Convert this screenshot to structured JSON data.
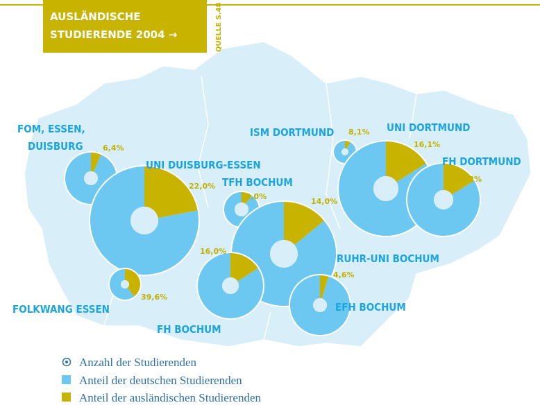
{
  "header": {
    "title_lines": [
      "AUSLÄNDISCHE",
      "STUDIERENDE 2004 →"
    ],
    "source": "QUELLE S.48"
  },
  "donuts": [
    {
      "name_lines": [
        "FOM, ESSEN,",
        "DUISBURG"
      ],
      "value": 6.4,
      "value_label": "6,4%"
    },
    {
      "name_lines": [
        "UNI DUISBURG-ESSEN"
      ],
      "value": 22.0,
      "value_label": "22,0%"
    },
    {
      "name_lines": [
        "FOLKWANG ESSEN"
      ],
      "value": 39.6,
      "value_label": "39,6%"
    },
    {
      "name_lines": [
        "TFH BOCHUM"
      ],
      "value": 10.0,
      "value_label": "10,0%"
    },
    {
      "name_lines": [
        "RUHR-UNI BOCHUM"
      ],
      "value": 14.0,
      "value_label": "14,0%"
    },
    {
      "name_lines": [
        "FH BOCHUM"
      ],
      "value": 16.0,
      "value_label": "16,0%"
    },
    {
      "name_lines": [
        "EFH BOCHUM"
      ],
      "value": 4.6,
      "value_label": "4,6%"
    },
    {
      "name_lines": [
        "ISM DORTMUND"
      ],
      "value": 8.1,
      "value_label": "8,1%"
    },
    {
      "name_lines": [
        "UNI DORTMUND"
      ],
      "value": 16.1,
      "value_label": "16,1%"
    },
    {
      "name_lines": [
        "FH DORTMUND"
      ],
      "value": 16.2,
      "value_label": "16,2%"
    }
  ],
  "legend": [
    "Anzahl der Studierenden",
    "Anteil der deutschen Studierenden",
    "Anteil der ausländischen Studierenden"
  ]
}
